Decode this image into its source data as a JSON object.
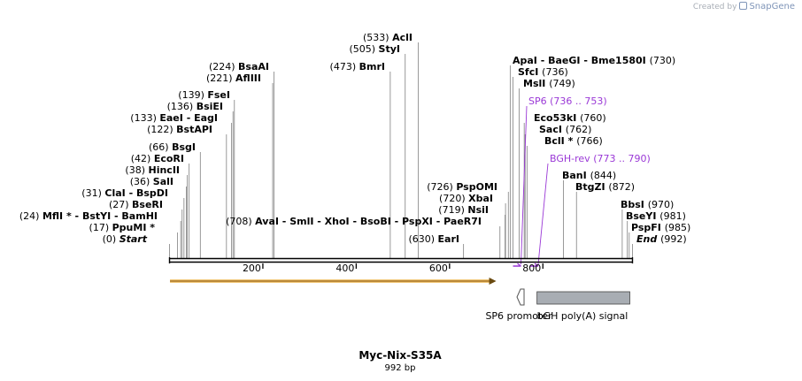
{
  "credit": {
    "prefix": "Created by",
    "brand": "SnapGene"
  },
  "title": "Myc-Nix-S35A",
  "length_label": "992 bp",
  "colors": {
    "primer": "#9a38d6",
    "orf": "#e3a03b",
    "box": "#a8adb3",
    "backbone": "#000000"
  },
  "axis": {
    "max": 992,
    "ticks": [
      {
        "pos": 200,
        "label": "200"
      },
      {
        "pos": 400,
        "label": "400"
      },
      {
        "pos": 600,
        "label": "600"
      },
      {
        "pos": 800,
        "label": "800"
      }
    ]
  },
  "sites": [
    {
      "pos": 0,
      "text": "(0)",
      "names": "Start",
      "italic": true
    },
    {
      "pos": 17,
      "text": "(17)",
      "names": "PpuMI *"
    },
    {
      "pos": 24,
      "text": "(24)",
      "names": "MflI * - BstYI - BamHI"
    },
    {
      "pos": 27,
      "text": "(27)",
      "names": "BseRI"
    },
    {
      "pos": 31,
      "text": "(31)",
      "names": "ClaI - BspDI"
    },
    {
      "pos": 36,
      "text": "(36)",
      "names": "SalI"
    },
    {
      "pos": 38,
      "text": "(38)",
      "names": "HincII"
    },
    {
      "pos": 42,
      "text": "(42)",
      "names": "EcoRI"
    },
    {
      "pos": 66,
      "text": "(66)",
      "names": "BsgI"
    },
    {
      "pos": 122,
      "text": "(122)",
      "names": "BstAPI"
    },
    {
      "pos": 133,
      "text": "(133)",
      "names": "EaeI - EagI"
    },
    {
      "pos": 136,
      "text": "(136)",
      "names": "BsiEI"
    },
    {
      "pos": 139,
      "text": "(139)",
      "names": "FseI"
    },
    {
      "pos": 221,
      "text": "(221)",
      "names": "AflIII"
    },
    {
      "pos": 224,
      "text": "(224)",
      "names": "BsaAI"
    },
    {
      "pos": 473,
      "text": "(473)",
      "names": "BmrI"
    },
    {
      "pos": 505,
      "text": "(505)",
      "names": "StyI"
    },
    {
      "pos": 533,
      "text": "(533)",
      "names": "AclI"
    },
    {
      "pos": 630,
      "text": "(630)",
      "names": "EarI"
    },
    {
      "pos": 708,
      "text": "(708)",
      "names": "AvaI - SmlI - XhoI - BsoBI - PspXI - PaeR7I"
    },
    {
      "pos": 719,
      "text": "(719)",
      "names": "NsiI"
    },
    {
      "pos": 720,
      "text": "(720)",
      "names": "XbaI"
    },
    {
      "pos": 726,
      "text": "(726)",
      "names": "PspOMI"
    },
    {
      "pos": 730,
      "text": "(730)",
      "names": "ApaI - BaeGI - Bme1580I"
    },
    {
      "pos": 736,
      "text": "(736)",
      "names": "SfcI"
    },
    {
      "pos": 749,
      "text": "(749)",
      "names": "MslI"
    },
    {
      "pos": 760,
      "text": "(760)",
      "names": "Eco53kI"
    },
    {
      "pos": 762,
      "text": "(762)",
      "names": "SacI"
    },
    {
      "pos": 766,
      "text": "(766)",
      "names": "BclI *"
    },
    {
      "pos": 844,
      "text": "(844)",
      "names": "BanI"
    },
    {
      "pos": 872,
      "text": "(872)",
      "names": "BtgZI"
    },
    {
      "pos": 970,
      "text": "(970)",
      "names": "BbsI"
    },
    {
      "pos": 981,
      "text": "(981)",
      "names": "BseYI"
    },
    {
      "pos": 985,
      "text": "(985)",
      "names": "PspFI"
    },
    {
      "pos": 992,
      "text": "(992)",
      "names": "End",
      "italic": true
    }
  ],
  "primers": [
    {
      "name": "SP6",
      "range": "(736 .. 753)",
      "start": 736,
      "end": 753
    },
    {
      "name": "BGH-rev",
      "range": "(773 .. 790)",
      "start": 773,
      "end": 790
    }
  ],
  "features": [
    {
      "name": "",
      "type": "orf",
      "start": 1,
      "end": 700
    },
    {
      "name": "SP6 promoter",
      "type": "promoter",
      "start": 736,
      "end": 754
    },
    {
      "name": "bGH poly(A) signal",
      "type": "polyA",
      "start": 776,
      "end": 992
    }
  ]
}
